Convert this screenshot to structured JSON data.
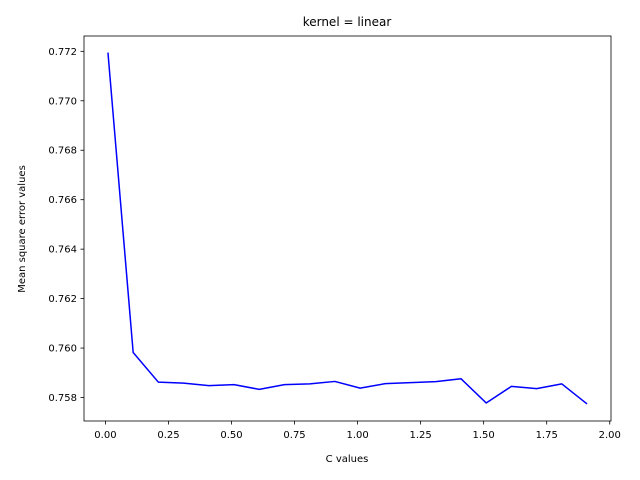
{
  "chart_data": {
    "type": "line",
    "title": "kernel = linear",
    "xlabel": "C values",
    "ylabel": "Mean square error values",
    "xlim": [
      -0.085,
      2.005
    ],
    "ylim": [
      0.75705,
      0.77262
    ],
    "xticks": [
      0.0,
      0.25,
      0.5,
      0.75,
      1.0,
      1.25,
      1.5,
      1.75,
      2.0
    ],
    "xtick_labels": [
      "0.00",
      "0.25",
      "0.50",
      "0.75",
      "1.00",
      "1.25",
      "1.50",
      "1.75",
      "2.00"
    ],
    "yticks": [
      0.758,
      0.76,
      0.762,
      0.764,
      0.766,
      0.768,
      0.77,
      0.772
    ],
    "ytick_labels": [
      "0.758",
      "0.760",
      "0.762",
      "0.764",
      "0.766",
      "0.768",
      "0.770",
      "0.772"
    ],
    "grid": false,
    "series": [
      {
        "color": "#0000ff",
        "x": [
          0.01,
          0.11,
          0.21,
          0.31,
          0.41,
          0.51,
          0.61,
          0.71,
          0.81,
          0.91,
          1.01,
          1.11,
          1.21,
          1.31,
          1.41,
          1.51,
          1.61,
          1.71,
          1.81,
          1.91
        ],
        "y": [
          0.77195,
          0.75982,
          0.75862,
          0.75858,
          0.75848,
          0.75852,
          0.75833,
          0.75852,
          0.75855,
          0.75865,
          0.75838,
          0.75856,
          0.7586,
          0.75864,
          0.75876,
          0.75778,
          0.75845,
          0.75836,
          0.75855,
          0.75774
        ]
      }
    ]
  }
}
